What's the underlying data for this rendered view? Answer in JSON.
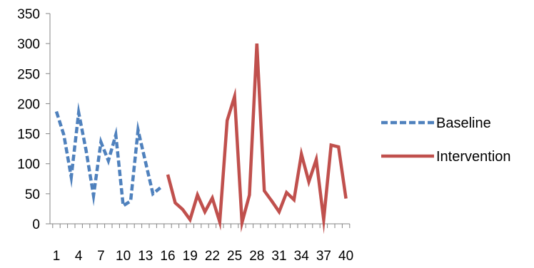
{
  "chart_data": {
    "type": "line",
    "title": "",
    "xlabel": "",
    "ylabel": "",
    "ylim": [
      0,
      350
    ],
    "yticks": [
      0,
      50,
      100,
      150,
      200,
      250,
      300,
      350
    ],
    "xlim": [
      1,
      40
    ],
    "xtick_labels": [
      "1",
      "4",
      "7",
      "10",
      "13",
      "16",
      "19",
      "22",
      "25",
      "28",
      "31",
      "34",
      "37",
      "40"
    ],
    "grid": false,
    "legend_position": "right",
    "series": [
      {
        "name": "Baseline",
        "color": "#4F81BD",
        "style": "dashed",
        "x": [
          1,
          2,
          3,
          4,
          5,
          6,
          7,
          8,
          9,
          10,
          11,
          12,
          13,
          14,
          15
        ],
        "y": [
          187,
          148,
          78,
          185,
          122,
          47,
          136,
          105,
          148,
          30,
          38,
          156,
          103,
          50,
          60
        ]
      },
      {
        "name": "Intervention",
        "color": "#C0504D",
        "style": "solid",
        "x": [
          16,
          17,
          18,
          19,
          20,
          21,
          22,
          23,
          24,
          25,
          26,
          27,
          28,
          29,
          30,
          31,
          32,
          33,
          34,
          35,
          36,
          37,
          38,
          39,
          40
        ],
        "y": [
          82,
          35,
          24,
          7,
          48,
          20,
          43,
          3,
          172,
          212,
          2,
          48,
          300,
          55,
          38,
          20,
          52,
          40,
          116,
          70,
          107,
          7,
          131,
          128,
          42
        ]
      }
    ]
  }
}
